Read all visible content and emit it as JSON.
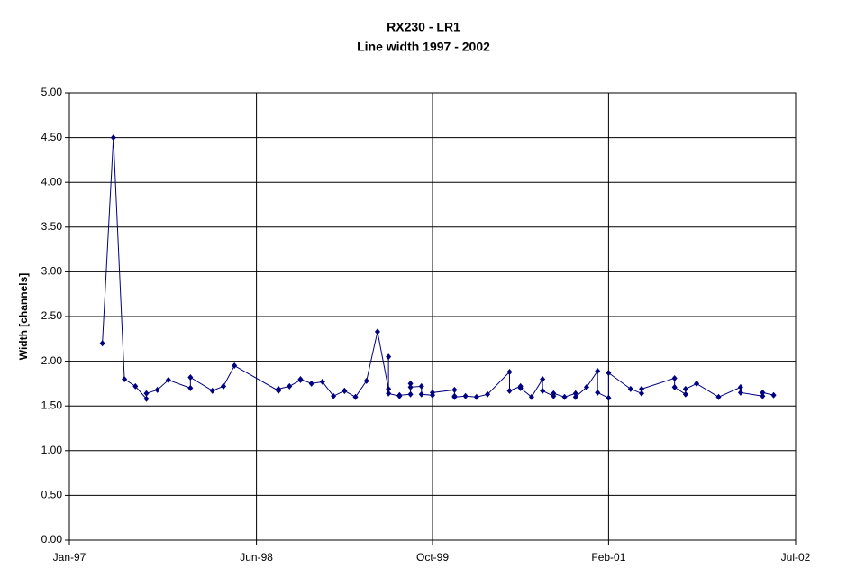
{
  "chart_data": {
    "type": "line",
    "title": "RX230 - LR1",
    "subtitle": "Line width 1997 - 2002",
    "y_label": "Width [channels]",
    "x": [
      "1997-04",
      "1997-05",
      "1997-06",
      "1997-07",
      "1997-08",
      "1997-08",
      "1997-09",
      "1997-10",
      "1997-12",
      "1997-12",
      "1998-02",
      "1998-03",
      "1998-03",
      "1998-04",
      "1998-08",
      "1998-08",
      "1998-09",
      "1998-10",
      "1998-10",
      "1998-11",
      "1998-12",
      "1999-01",
      "1999-02",
      "1999-02",
      "1999-03",
      "1999-04",
      "1999-05",
      "1999-06",
      "1999-06",
      "1999-06",
      "1999-07",
      "1999-07",
      "1999-08",
      "1999-08",
      "1999-08",
      "1999-09",
      "1999-09",
      "1999-10",
      "1999-10",
      "1999-12",
      "1999-12",
      "1999-12",
      "2000-01",
      "2000-02",
      "2000-03",
      "2000-05",
      "2000-05",
      "2000-06",
      "2000-06",
      "2000-07",
      "2000-08",
      "2000-08",
      "2000-09",
      "2000-09",
      "2000-10",
      "2000-11",
      "2000-11",
      "2000-12",
      "2001-01",
      "2001-01",
      "2001-02",
      "2001-02",
      "2001-04",
      "2001-05",
      "2001-05",
      "2001-08",
      "2001-08",
      "2001-09",
      "2001-09",
      "2001-10",
      "2001-12",
      "2002-02",
      "2002-02",
      "2002-04",
      "2002-04",
      "2002-05"
    ],
    "series": [
      {
        "name": "Width",
        "color": "#000080",
        "values": [
          2.2,
          4.5,
          1.8,
          1.72,
          1.58,
          1.64,
          1.68,
          1.79,
          1.7,
          1.82,
          1.67,
          1.72,
          1.72,
          1.95,
          1.67,
          1.69,
          1.72,
          1.79,
          1.8,
          1.75,
          1.77,
          1.61,
          1.67,
          1.67,
          1.6,
          1.78,
          2.33,
          1.69,
          2.05,
          1.64,
          1.61,
          1.62,
          1.63,
          1.75,
          1.71,
          1.72,
          1.63,
          1.62,
          1.65,
          1.68,
          1.61,
          1.6,
          1.61,
          1.6,
          1.63,
          1.88,
          1.67,
          1.72,
          1.7,
          1.6,
          1.8,
          1.67,
          1.61,
          1.64,
          1.6,
          1.64,
          1.6,
          1.71,
          1.89,
          1.65,
          1.59,
          1.87,
          1.69,
          1.64,
          1.69,
          1.81,
          1.71,
          1.63,
          1.69,
          1.75,
          1.6,
          1.71,
          1.65,
          1.61,
          1.65,
          1.62
        ]
      }
    ],
    "xlim": [
      "1997-01",
      "2002-07"
    ],
    "xticks": [
      {
        "value": "1997-01",
        "label": "Jan-97"
      },
      {
        "value": "1998-06",
        "label": "Jun-98"
      },
      {
        "value": "1999-10",
        "label": "Oct-99"
      },
      {
        "value": "2001-02",
        "label": "Feb-01"
      },
      {
        "value": "2002-07",
        "label": "Jul-02"
      }
    ],
    "ylim": [
      0,
      5
    ],
    "yticks": [
      {
        "value": 0,
        "label": "0.00"
      },
      {
        "value": 0.5,
        "label": "0.50"
      },
      {
        "value": 1,
        "label": "1.00"
      },
      {
        "value": 1.5,
        "label": "1.50"
      },
      {
        "value": 2,
        "label": "2.00"
      },
      {
        "value": 2.5,
        "label": "2.50"
      },
      {
        "value": 3,
        "label": "3.00"
      },
      {
        "value": 3.5,
        "label": "3.50"
      },
      {
        "value": 4,
        "label": "4.00"
      },
      {
        "value": 4.5,
        "label": "4.50"
      },
      {
        "value": 5,
        "label": "5.00"
      }
    ],
    "grid": true
  }
}
